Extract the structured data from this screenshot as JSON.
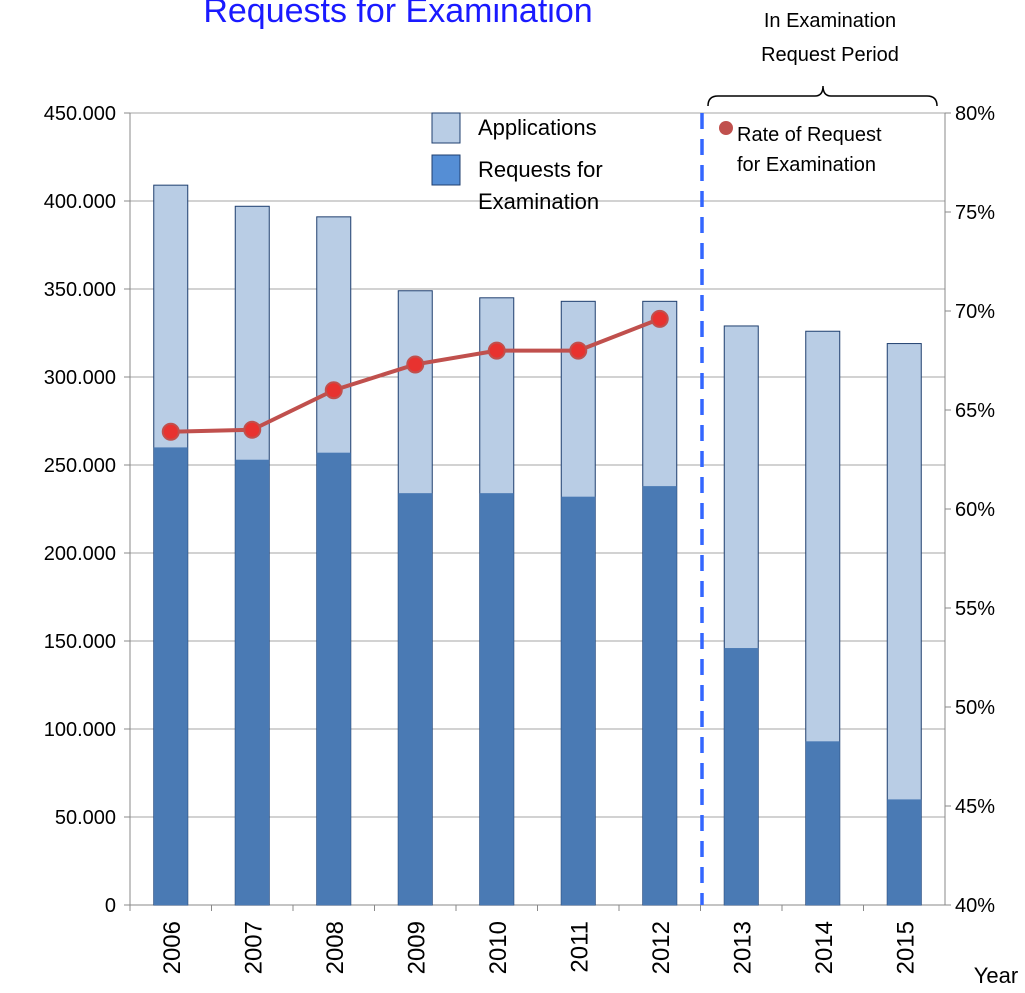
{
  "chart_data": {
    "type": "bar",
    "title": "Requests for Examination",
    "annotation": [
      "In Examination",
      "Request   Period"
    ],
    "x_label": "Year",
    "categories": [
      "2006",
      "2007",
      "2008",
      "2009",
      "2010",
      "2011",
      "2012",
      "2013",
      "2014",
      "2015"
    ],
    "series": [
      {
        "name": "Applications",
        "color": "#b9cde5",
        "values": [
          409000,
          397000,
          391000,
          349000,
          345000,
          343000,
          343000,
          329000,
          326000,
          319000
        ]
      },
      {
        "name": "Requests for Examination",
        "color": "#4a7ab4",
        "values": [
          260000,
          253000,
          257000,
          234000,
          234000,
          232000,
          238000,
          146000,
          93000,
          60000
        ]
      },
      {
        "name": "Rate of Request for Examination",
        "type": "line",
        "axis": "y2",
        "color": "#c0504d",
        "values": [
          63.9,
          64.0,
          66.0,
          67.3,
          68.0,
          68.0,
          69.6,
          null,
          null,
          null
        ]
      }
    ],
    "ylim": [
      0,
      450000
    ],
    "yticks": [
      0,
      {
        "value": 50000,
        "label": "50.000"
      },
      {
        "value": 100000,
        "label": "100.000"
      },
      {
        "value": 150000,
        "label": "150.000"
      },
      {
        "value": 200000,
        "label": "200.000"
      },
      {
        "value": 250000,
        "label": "250.000"
      },
      {
        "value": 300000,
        "label": "300.000"
      },
      {
        "value": 350000,
        "label": "350.000"
      },
      {
        "value": 400000,
        "label": "400.000"
      },
      {
        "value": 450000,
        "label": "450.000"
      }
    ],
    "y2lim": [
      40,
      80
    ],
    "y2ticks": [
      {
        "value": 40,
        "label": "40%"
      },
      {
        "value": 45,
        "label": "45%"
      },
      {
        "value": 50,
        "label": "50%"
      },
      {
        "value": 55,
        "label": "55%"
      },
      {
        "value": 60,
        "label": "60%"
      },
      {
        "value": 65,
        "label": "65%"
      },
      {
        "value": 70,
        "label": "70%"
      },
      {
        "value": 75,
        "label": "75%"
      },
      {
        "value": 80,
        "label": "80%"
      }
    ],
    "grid": true
  }
}
